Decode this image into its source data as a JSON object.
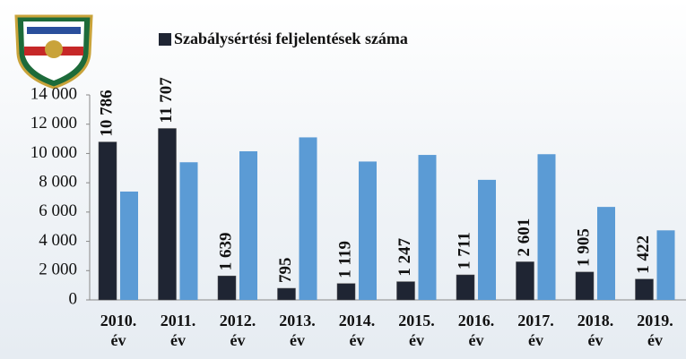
{
  "chart_data": {
    "type": "bar",
    "categories": [
      "2010. év",
      "2011. év",
      "2012. év",
      "2013. év",
      "2014. év",
      "2015. év",
      "2016. év",
      "2017. év",
      "2018. év",
      "2019. év"
    ],
    "series": [
      {
        "name": "Szabálysértési feljelentések száma",
        "color": "#1f2533",
        "values": [
          10786,
          11707,
          1639,
          795,
          1119,
          1247,
          1711,
          2601,
          1905,
          1422
        ],
        "value_labels": [
          "10 786",
          "11 707",
          "1 639",
          "795",
          "1 119",
          "1 247",
          "1 711",
          "2 601",
          "1 905",
          "1 422"
        ]
      },
      {
        "color": "#5b9bd5",
        "values": [
          7400,
          9400,
          10150,
          11100,
          9450,
          9900,
          8200,
          9950,
          6350,
          4750
        ]
      }
    ],
    "ylim": [
      0,
      14000
    ],
    "yticks": [
      0,
      {
        "value": 2000,
        "label": "2 000"
      },
      {
        "value": 4000,
        "label": "4 000"
      },
      {
        "value": 6000,
        "label": "6 000"
      },
      {
        "value": 8000,
        "label": "8 000"
      },
      {
        "value": 10000,
        "label": "10 000"
      },
      {
        "value": 12000,
        "label": "12 000"
      },
      {
        "value": 14000,
        "label": "14 000"
      }
    ]
  }
}
